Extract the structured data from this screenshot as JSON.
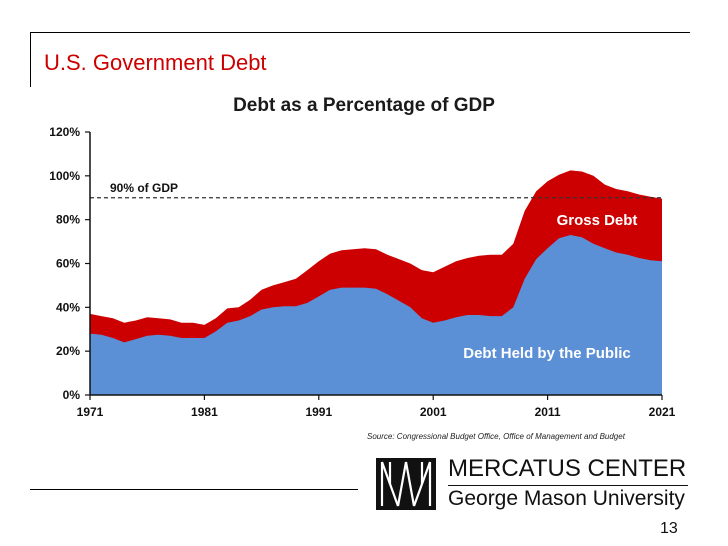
{
  "slide": {
    "title": "U.S. Government Debt",
    "source": "Source: Congressional Budget Office, Office of Management and Budget",
    "org_name": "MERCATUS CENTER",
    "org_subtitle": "George Mason University",
    "page_number": "13"
  },
  "chart_data": {
    "type": "area",
    "title": "Debt as a Percentage of GDP",
    "xlabel": "",
    "ylabel": "",
    "xlim": [
      1971,
      2021
    ],
    "ylim": [
      0,
      120
    ],
    "x_ticks": [
      1971,
      1981,
      1991,
      2001,
      2011,
      2021
    ],
    "y_ticks": [
      0,
      20,
      40,
      60,
      80,
      100,
      120
    ],
    "y_tick_labels": [
      "0%",
      "20%",
      "40%",
      "60%",
      "80%",
      "100%",
      "120%"
    ],
    "grid": false,
    "reference_line": {
      "value": 90,
      "label": "90% of GDP",
      "style": "dashed"
    },
    "series": [
      {
        "name": "Gross Debt",
        "color": "#cc0000",
        "x": [
          1971,
          1972,
          1973,
          1974,
          1975,
          1976,
          1977,
          1978,
          1979,
          1980,
          1981,
          1982,
          1983,
          1984,
          1985,
          1986,
          1987,
          1988,
          1989,
          1990,
          1991,
          1992,
          1993,
          1994,
          1995,
          1996,
          1997,
          1998,
          1999,
          2000,
          2001,
          2002,
          2003,
          2004,
          2005,
          2006,
          2007,
          2008,
          2009,
          2010,
          2011,
          2012,
          2013,
          2014,
          2015,
          2016,
          2017,
          2018,
          2019,
          2020,
          2021
        ],
        "values": [
          37,
          36,
          35,
          33,
          34,
          35.5,
          35,
          34.5,
          33,
          33,
          32,
          35,
          39.5,
          40,
          43.5,
          48,
          50,
          51.5,
          53,
          57,
          61,
          64.5,
          66,
          66.5,
          67,
          66.5,
          64,
          62,
          60,
          57,
          56,
          58.5,
          61,
          62.5,
          63.5,
          64,
          64,
          69,
          84,
          93,
          97.5,
          100.5,
          102.5,
          102,
          100,
          96,
          94,
          93,
          91.5,
          90.5,
          89.5
        ]
      },
      {
        "name": "Debt Held by the Public",
        "color": "#5b8fd6",
        "x": [
          1971,
          1972,
          1973,
          1974,
          1975,
          1976,
          1977,
          1978,
          1979,
          1980,
          1981,
          1982,
          1983,
          1984,
          1985,
          1986,
          1987,
          1988,
          1989,
          1990,
          1991,
          1992,
          1993,
          1994,
          1995,
          1996,
          1997,
          1998,
          1999,
          2000,
          2001,
          2002,
          2003,
          2004,
          2005,
          2006,
          2007,
          2008,
          2009,
          2010,
          2011,
          2012,
          2013,
          2014,
          2015,
          2016,
          2017,
          2018,
          2019,
          2020,
          2021
        ],
        "values": [
          28,
          27.5,
          26,
          24,
          25.5,
          27,
          27.5,
          27,
          26,
          26,
          26,
          29,
          33,
          34,
          36,
          39,
          40,
          40.5,
          40.5,
          42,
          45,
          48,
          49,
          49,
          49,
          48.5,
          46,
          43,
          40,
          35,
          33,
          34,
          35.5,
          36.5,
          36.5,
          36,
          36,
          40,
          53,
          62,
          67,
          71.5,
          73,
          72,
          69,
          67,
          65,
          64,
          62.5,
          61.5,
          61
        ]
      }
    ],
    "annotations": [
      "Gross Debt",
      "Debt Held by the Public"
    ]
  }
}
